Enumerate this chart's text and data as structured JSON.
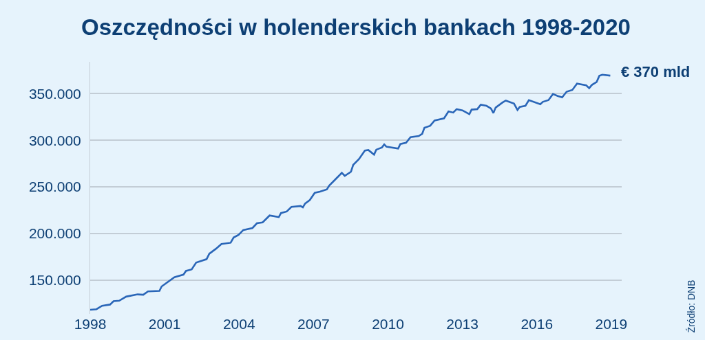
{
  "chart_data": {
    "type": "line",
    "title": "Oszczędności w holenderskich bankach 1998-2020",
    "x": [
      1998.0,
      1998.25,
      1998.48,
      1998.8,
      1998.94,
      1999.17,
      1999.45,
      1999.91,
      2000.14,
      2000.33,
      2000.79,
      2000.88,
      2001.39,
      2001.76,
      2001.86,
      2002.09,
      2002.27,
      2002.69,
      2002.8,
      2003.06,
      2003.29,
      2003.66,
      2003.78,
      2003.98,
      2004.17,
      2004.54,
      2004.72,
      2004.95,
      2005.23,
      2005.6,
      2005.69,
      2005.92,
      2006.11,
      2006.48,
      2006.57,
      2006.66,
      2006.85,
      2007.05,
      2007.26,
      2007.54,
      2007.63,
      2007.96,
      2008.14,
      2008.26,
      2008.51,
      2008.6,
      2008.83,
      2009.07,
      2009.21,
      2009.44,
      2009.53,
      2009.76,
      2009.85,
      2009.94,
      2010.41,
      2010.5,
      2010.73,
      2010.91,
      2011.24,
      2011.38,
      2011.47,
      2011.7,
      2011.88,
      2012.26,
      2012.44,
      2012.63,
      2012.77,
      2013.0,
      2013.28,
      2013.37,
      2013.6,
      2013.74,
      2013.97,
      2014.15,
      2014.25,
      2014.34,
      2014.62,
      2014.75,
      2015.08,
      2015.22,
      2015.31,
      2015.54,
      2015.68,
      2016.14,
      2016.24,
      2016.47,
      2016.65,
      2016.84,
      2017.02,
      2017.2,
      2017.43,
      2017.62,
      2017.99,
      2018.11,
      2018.22,
      2018.41,
      2018.52,
      2018.64,
      2018.96
    ],
    "series": [
      {
        "color": "#2a66b8",
        "values": [
          118400,
          119000,
          122700,
          124000,
          127600,
          128100,
          132500,
          134900,
          134500,
          138100,
          138600,
          143400,
          153200,
          156100,
          160000,
          161700,
          169000,
          172600,
          178500,
          183600,
          188900,
          190200,
          195800,
          198700,
          203800,
          206000,
          211100,
          212000,
          219400,
          217700,
          222000,
          223700,
          228600,
          229600,
          228100,
          232200,
          235900,
          243700,
          244900,
          247400,
          251300,
          260200,
          265100,
          261900,
          266300,
          273600,
          279800,
          288900,
          289500,
          284600,
          289900,
          292300,
          295500,
          293100,
          291100,
          296000,
          297300,
          303300,
          304500,
          306900,
          313300,
          315500,
          321100,
          323500,
          330800,
          329600,
          333300,
          332000,
          327900,
          332800,
          333300,
          338100,
          336900,
          334000,
          329100,
          335000,
          340500,
          342500,
          339300,
          332500,
          335700,
          336900,
          343000,
          338600,
          341100,
          343000,
          349500,
          347400,
          345900,
          352000,
          353900,
          360700,
          358800,
          355800,
          359300,
          362400,
          369000,
          370200,
          369200
        ]
      }
    ],
    "xlim": [
      1998,
      2019.42
    ],
    "xticks": [
      1998,
      2001,
      2004,
      2007,
      2010,
      2013,
      2016,
      2019
    ],
    "ylim": [
      114000,
      384000
    ],
    "yticks": [
      {
        "value": 150000,
        "label": "150.000"
      },
      {
        "value": 200000,
        "label": "200.000"
      },
      {
        "value": 250000,
        "label": "250.000"
      },
      {
        "value": 300000,
        "label": "300.000"
      },
      {
        "value": 350000,
        "label": "350.000"
      }
    ],
    "grid": "y",
    "line_style": "solid",
    "annotations": [
      {
        "text": "€ 370 mld",
        "x": 2018.96,
        "y": 369200
      },
      "Źródło: DNB"
    ]
  }
}
